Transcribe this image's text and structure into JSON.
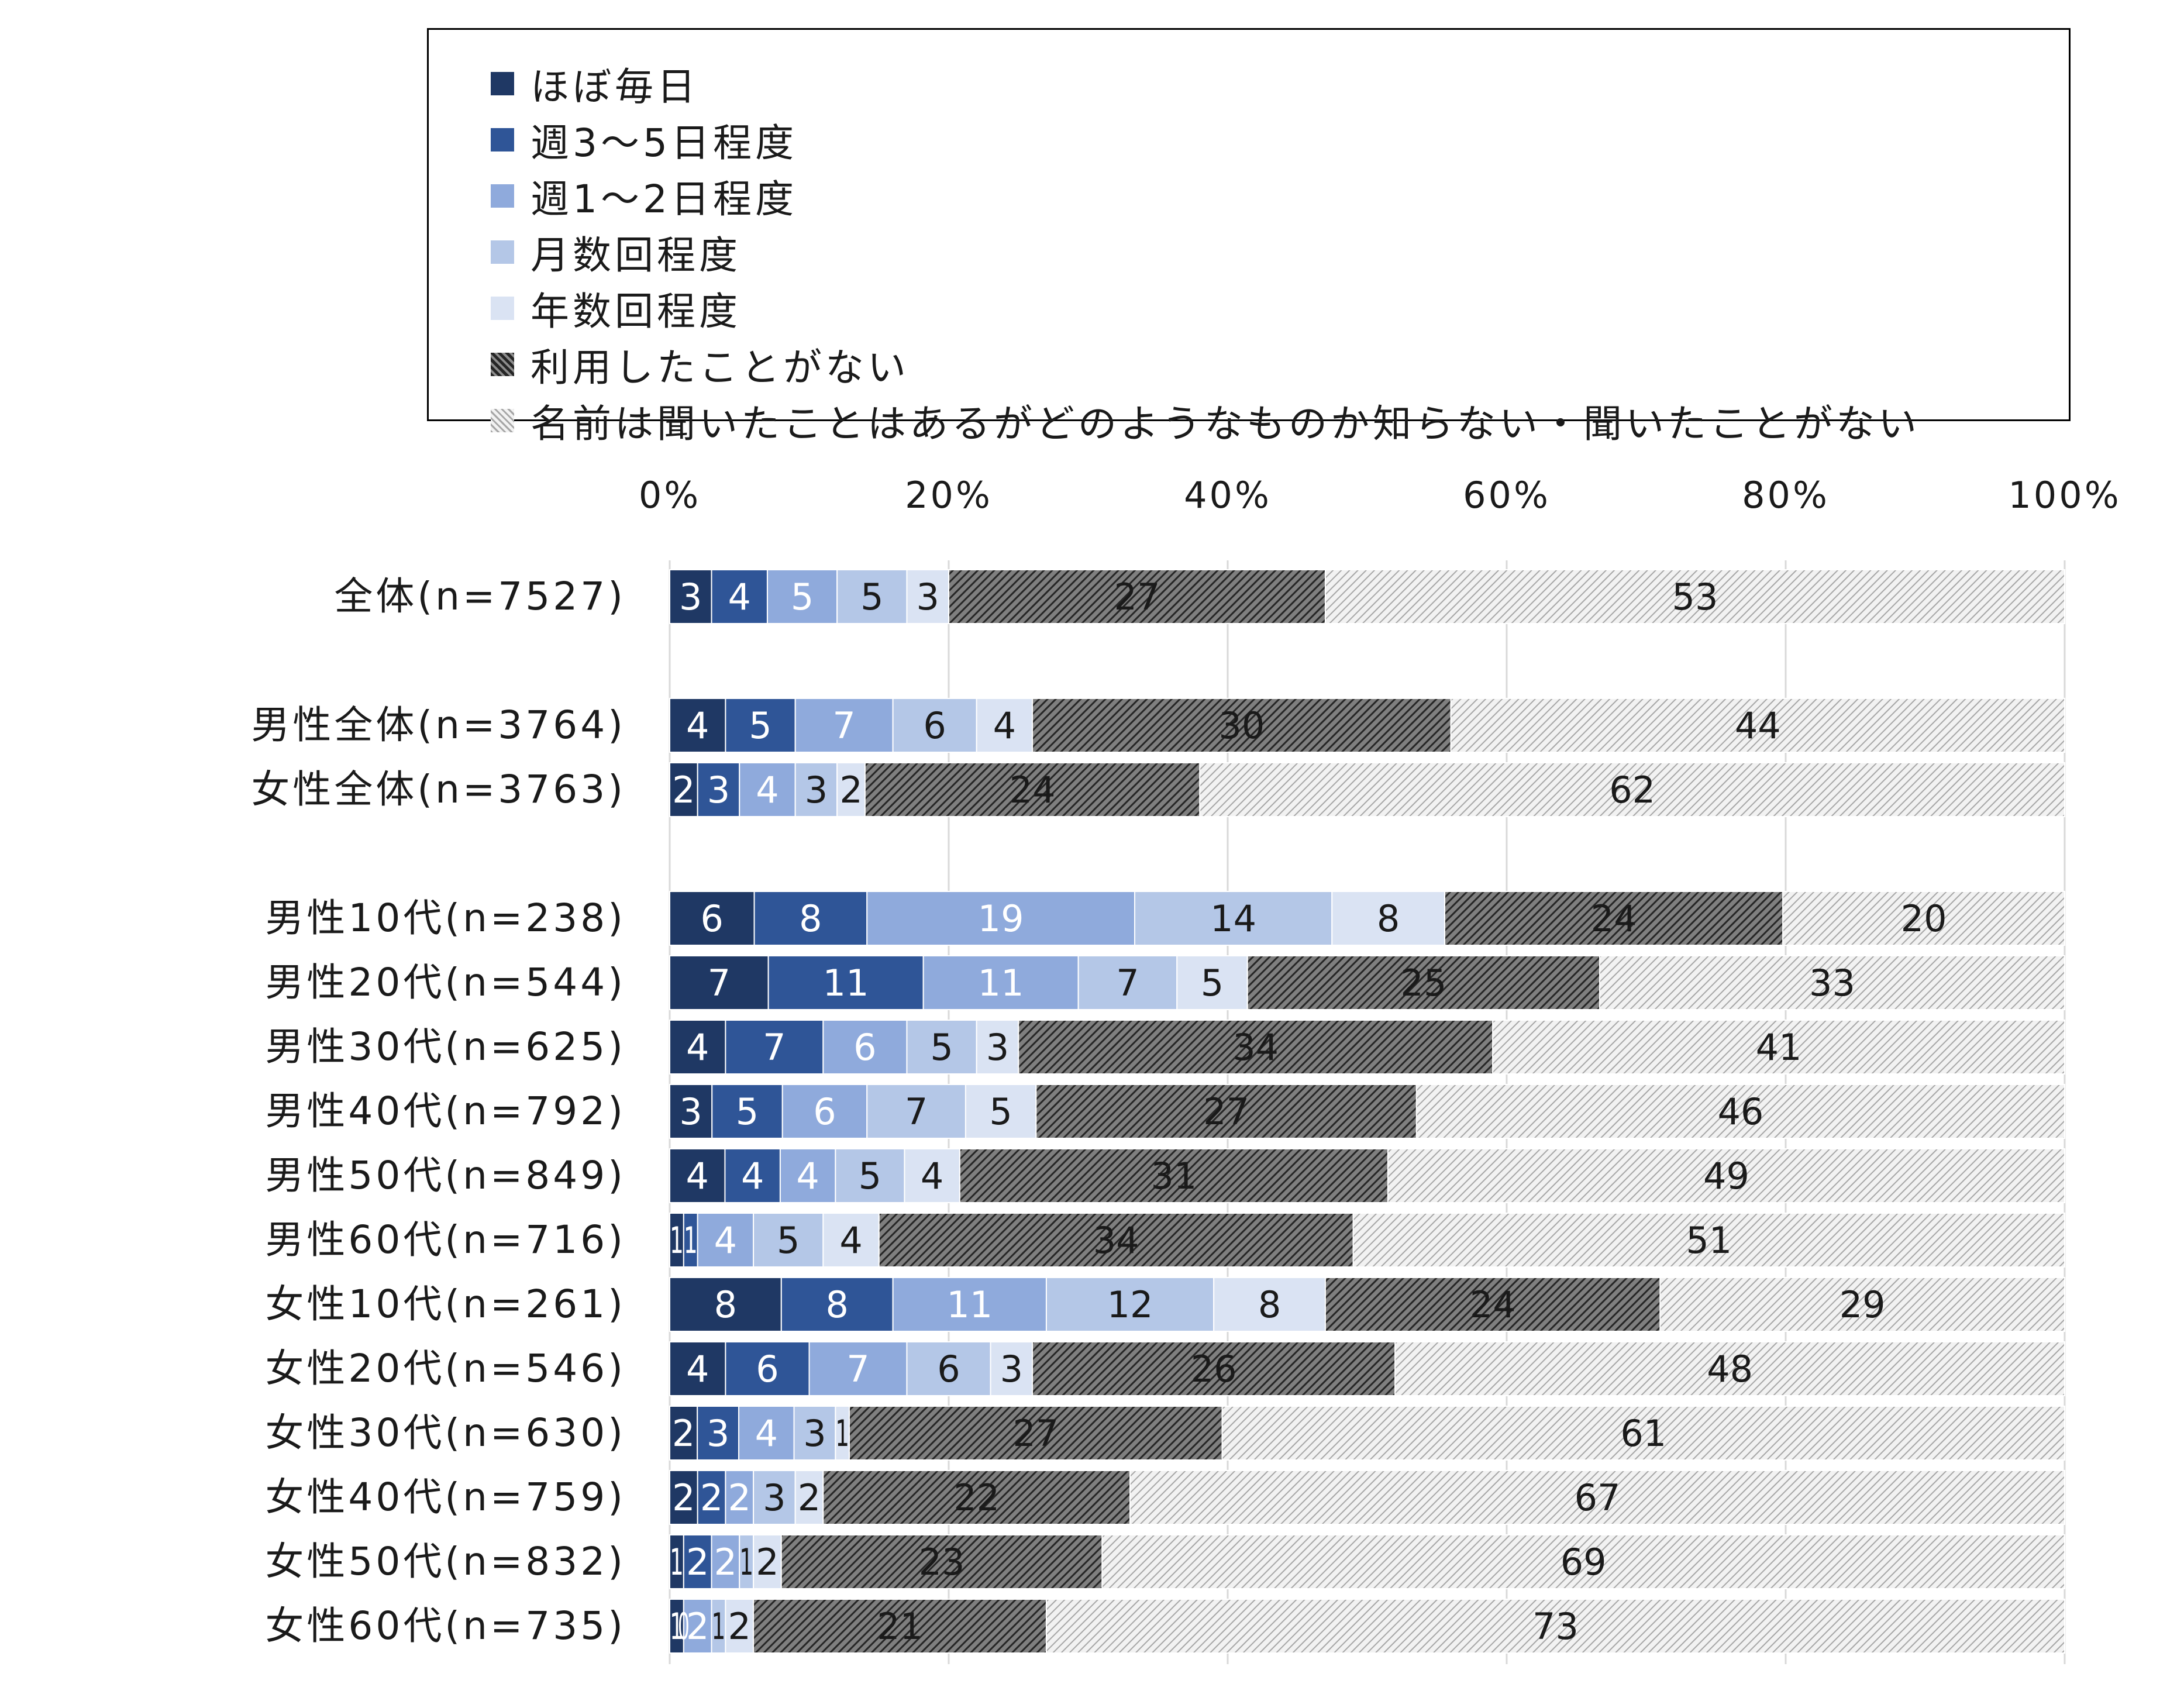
{
  "chart_data": {
    "type": "bar",
    "orientation": "horizontal",
    "stacked": true,
    "percent_scale": true,
    "x_ticks": [
      "0%",
      "20%",
      "40%",
      "60%",
      "80%",
      "100%"
    ],
    "xlim": [
      0,
      100
    ],
    "grid": true,
    "legend_position": "top",
    "categories": [
      "全体(n=7527)",
      "男性全体(n=3764)",
      "女性全体(n=3763)",
      "男性10代(n=238)",
      "男性20代(n=544)",
      "男性30代(n=625)",
      "男性40代(n=792)",
      "男性50代(n=849)",
      "男性60代(n=716)",
      "女性10代(n=261)",
      "女性20代(n=546)",
      "女性30代(n=630)",
      "女性40代(n=759)",
      "女性50代(n=832)",
      "女性60代(n=735)"
    ],
    "series": [
      {
        "name": "ほぼ毎日",
        "color": "#1f3864",
        "values": [
          3,
          4,
          2,
          6,
          7,
          4,
          3,
          4,
          1,
          8,
          4,
          2,
          2,
          1,
          1
        ]
      },
      {
        "name": "週3～5日程度",
        "color": "#2f5597",
        "values": [
          4,
          5,
          3,
          8,
          11,
          7,
          5,
          4,
          1,
          8,
          6,
          3,
          2,
          2,
          0
        ]
      },
      {
        "name": "週1～2日程度",
        "color": "#8faadc",
        "values": [
          5,
          7,
          4,
          19,
          11,
          6,
          6,
          4,
          4,
          11,
          7,
          4,
          2,
          2,
          2
        ]
      },
      {
        "name": "月数回程度",
        "color": "#b4c7e7",
        "values": [
          5,
          6,
          3,
          14,
          7,
          5,
          7,
          5,
          5,
          12,
          6,
          3,
          3,
          1,
          1
        ]
      },
      {
        "name": "年数回程度",
        "color": "#dae3f3",
        "values": [
          3,
          4,
          2,
          8,
          5,
          3,
          5,
          4,
          4,
          8,
          3,
          1,
          2,
          2,
          2
        ]
      },
      {
        "name": "利用したことがない",
        "color": "#595959",
        "pattern": "dark-hatch",
        "values": [
          27,
          30,
          24,
          24,
          25,
          34,
          27,
          31,
          34,
          24,
          26,
          27,
          22,
          23,
          21
        ]
      },
      {
        "name": "名前は聞いたことはあるがどのようなものか知らない・聞いたことがない",
        "color": "#bfbfbf",
        "pattern": "light-hatch",
        "values": [
          53,
          44,
          62,
          20,
          33,
          41,
          46,
          49,
          51,
          29,
          48,
          61,
          67,
          69,
          73
        ]
      }
    ],
    "category_group": [
      0,
      1,
      1,
      2,
      2,
      2,
      2,
      2,
      2,
      2,
      2,
      2,
      2,
      2,
      2
    ]
  }
}
